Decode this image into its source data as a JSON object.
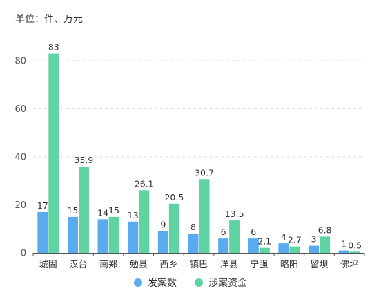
{
  "unit_label": "单位：件、万元",
  "colors": {
    "cases": "#5aaaf0",
    "funds": "#5fd3a2",
    "grid": "#dddddd",
    "axis": "#555555"
  },
  "chart_data": {
    "type": "bar",
    "title": "",
    "xlabel": "",
    "ylabel": "单位：件、万元",
    "ylim": [
      0,
      90
    ],
    "yticks": [
      0,
      20,
      40,
      60,
      80
    ],
    "grid": true,
    "legend_position": "bottom-center",
    "categories": [
      "城固",
      "汉台",
      "南郑",
      "勉县",
      "西乡",
      "镇巴",
      "洋县",
      "宁强",
      "略阳",
      "留坝",
      "佛坪"
    ],
    "series": [
      {
        "name": "发案数",
        "values": [
          17,
          15,
          14,
          13,
          9,
          8,
          6,
          6,
          4,
          3,
          1
        ],
        "labels": [
          "17",
          "15",
          "14",
          "13",
          "9",
          "8",
          "6",
          "6",
          "4",
          "3",
          "1"
        ]
      },
      {
        "name": "涉案资金",
        "values": [
          83,
          35.9,
          15,
          26.1,
          20.5,
          30.7,
          13.5,
          2.1,
          2.7,
          6.8,
          0.5
        ],
        "labels": [
          "83",
          "35.9",
          "15",
          "26.1",
          "20.5",
          "30.7",
          "13.5",
          "2.1",
          "2.7",
          "6.8",
          "0.5"
        ]
      }
    ]
  }
}
